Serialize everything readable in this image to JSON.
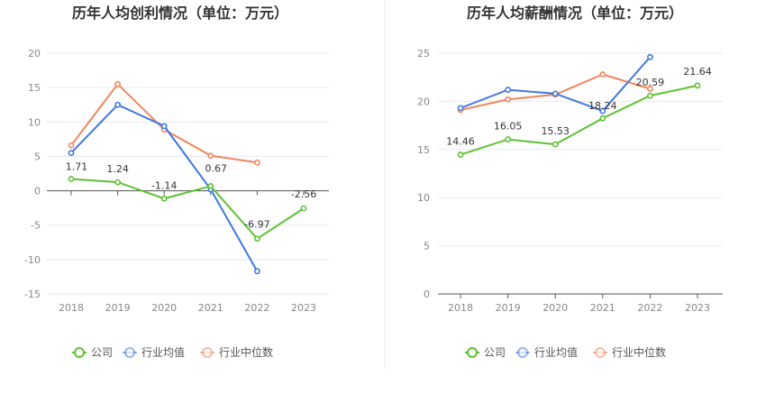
{
  "chart_data": [
    {
      "type": "line",
      "title": "历年人均创利情况（单位：万元）",
      "categories": [
        "2018",
        "2019",
        "2020",
        "2021",
        "2022",
        "2023"
      ],
      "ylim": [
        -15,
        20
      ],
      "yticks": [
        "20",
        "15",
        "10",
        "5",
        "0",
        "-5",
        "-10",
        "-15"
      ],
      "grid": true,
      "legend_position": "bottom",
      "series": [
        {
          "name": "公司",
          "color": "#5cc231",
          "values": [
            1.71,
            1.24,
            -1.14,
            0.67,
            -6.97,
            -2.56
          ],
          "labels": [
            "1.71",
            "1.24",
            "-1.14",
            "0.67",
            "-6.97",
            "-2.56"
          ]
        },
        {
          "name": "行业均值",
          "color": "#3f77e0",
          "values": [
            5.5,
            12.5,
            9.4,
            0.2,
            -11.7,
            null
          ],
          "labels": null
        },
        {
          "name": "行业中位数",
          "color": "#f0875b",
          "values": [
            6.6,
            15.5,
            8.9,
            5.1,
            4.1,
            null
          ],
          "labels": null
        }
      ]
    },
    {
      "type": "line",
      "title": "历年人均薪酬情况（单位：万元）",
      "categories": [
        "2018",
        "2019",
        "2020",
        "2021",
        "2022",
        "2023"
      ],
      "ylim": [
        0,
        25
      ],
      "yticks": [
        "25",
        "20",
        "15",
        "10",
        "5",
        "0"
      ],
      "grid": true,
      "legend_position": "bottom",
      "series": [
        {
          "name": "公司",
          "color": "#5cc231",
          "values": [
            14.46,
            16.05,
            15.53,
            18.24,
            20.59,
            21.64
          ],
          "labels": [
            "14.46",
            "16.05",
            "15.53",
            "18.24",
            "20.59",
            "21.64"
          ]
        },
        {
          "name": "行业均值",
          "color": "#3f77e0",
          "values": [
            19.3,
            21.2,
            20.8,
            19.0,
            24.6,
            null
          ],
          "labels": null
        },
        {
          "name": "行业中位数",
          "color": "#f0875b",
          "values": [
            19.1,
            20.2,
            20.7,
            22.8,
            21.3,
            null
          ],
          "labels": null
        }
      ]
    }
  ]
}
